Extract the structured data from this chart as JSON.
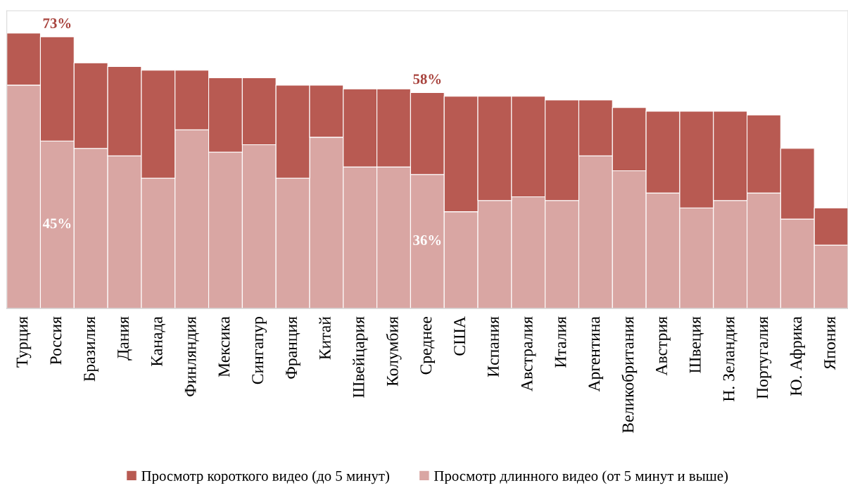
{
  "chart_data": {
    "type": "bar",
    "stacked": true,
    "categories": [
      "Турция",
      "Россия",
      "Бразилия",
      "Дания",
      "Канада",
      "Финляндия",
      "Мексика",
      "Сингапур",
      "Франция",
      "Китай",
      "Швейцария",
      "Колумбия",
      "Среднее",
      "США",
      "Испания",
      "Австралия",
      "Италия",
      "Аргентина",
      "Великобритания",
      "Австрия",
      "Швеция",
      "Н. Зеландия",
      "Португалия",
      "Ю. Африка",
      "Япония"
    ],
    "series": [
      {
        "name": "Просмотр длинного видео (от 5 минут и выше)",
        "color": "#d9a6a3",
        "values": [
          60,
          45,
          43,
          41,
          35,
          48,
          42,
          44,
          35,
          46,
          38,
          38,
          36,
          26,
          29,
          30,
          29,
          41,
          37,
          31,
          27,
          29,
          31,
          24,
          17
        ],
        "value_labels": [
          null,
          "45%",
          null,
          null,
          null,
          null,
          null,
          null,
          null,
          null,
          null,
          null,
          "36%",
          null,
          null,
          null,
          null,
          null,
          null,
          null,
          null,
          null,
          null,
          null,
          null
        ]
      },
      {
        "name": "Просмотр короткого видео (до 5 минут)",
        "color": "#b85a52",
        "values": [
          14,
          28,
          23,
          24,
          29,
          16,
          20,
          18,
          25,
          14,
          21,
          21,
          22,
          31,
          28,
          27,
          27,
          15,
          17,
          22,
          26,
          24,
          21,
          19,
          10
        ]
      }
    ],
    "totals": [
      null,
      "73%",
      null,
      null,
      null,
      null,
      null,
      null,
      null,
      null,
      null,
      null,
      "58%",
      null,
      null,
      null,
      null,
      null,
      null,
      null,
      null,
      null,
      null,
      null,
      null
    ],
    "ylim": [
      0,
      80
    ],
    "legend": "bottom",
    "grid": false
  }
}
